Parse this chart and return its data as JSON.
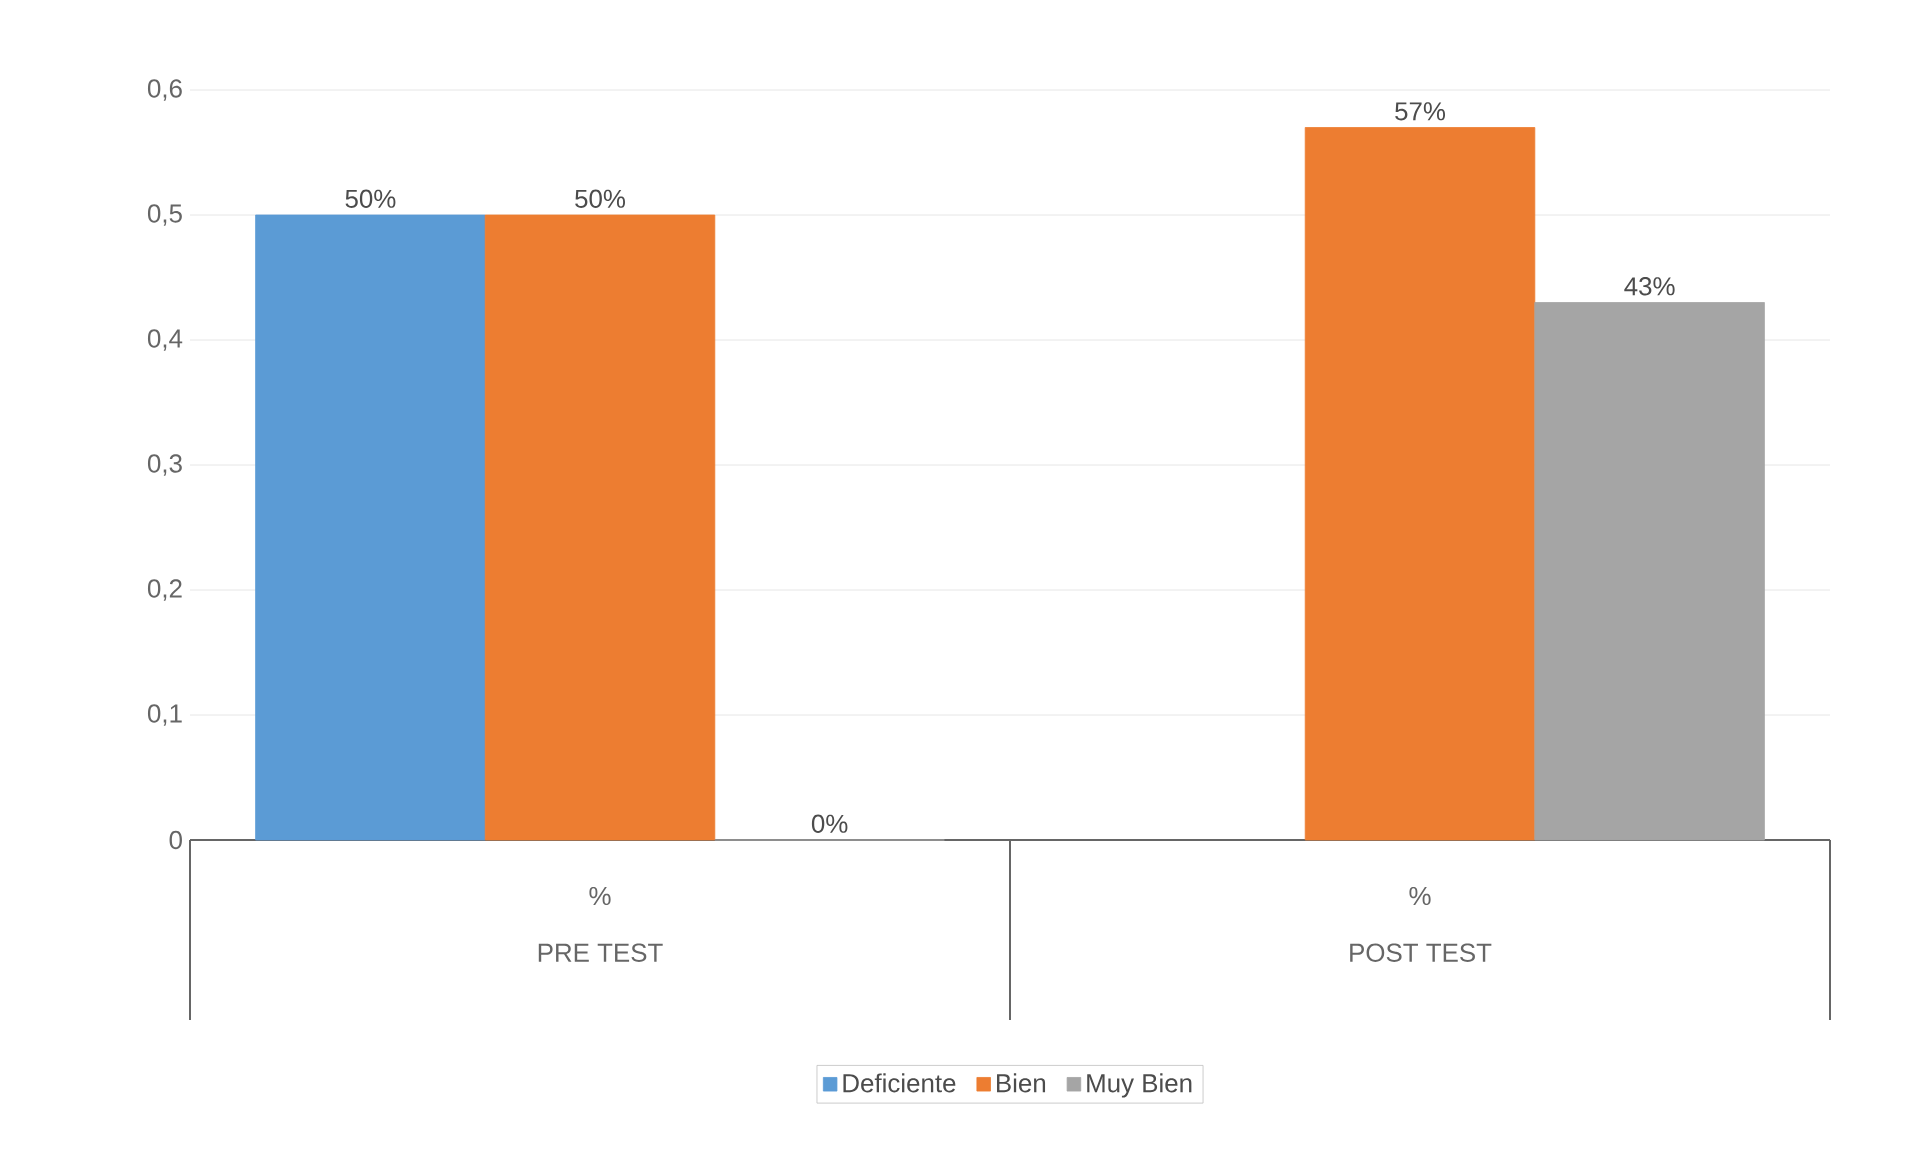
{
  "chart_data": {
    "type": "bar",
    "categories": [
      "PRE TEST",
      "POST TEST"
    ],
    "series": [
      {
        "name": "Deficiente",
        "color": "#5b9bd5",
        "values": [
          0.5,
          null
        ],
        "value_labels": [
          "50%",
          null
        ]
      },
      {
        "name": "Bien",
        "color": "#ed7d31",
        "values": [
          0.5,
          0.57
        ],
        "value_labels": [
          "50%",
          "57%"
        ]
      },
      {
        "name": "Muy Bien",
        "color": "#a5a5a5",
        "values": [
          0,
          0.43
        ],
        "value_labels": [
          "0%",
          "43%"
        ]
      }
    ],
    "annotations": [
      "%",
      "%"
    ],
    "ylim": [
      0,
      0.6
    ],
    "yticks": [
      0,
      {
        "value": 0.1,
        "label": "0,1"
      },
      {
        "value": 0.2,
        "label": "0,2"
      },
      {
        "value": 0.3,
        "label": "0,3"
      },
      {
        "value": 0.4,
        "label": "0,4"
      },
      {
        "value": 0.5,
        "label": "0,5"
      },
      {
        "value": 0.6,
        "label": "0,6"
      }
    ],
    "grid": "y",
    "legend": "bottom"
  }
}
